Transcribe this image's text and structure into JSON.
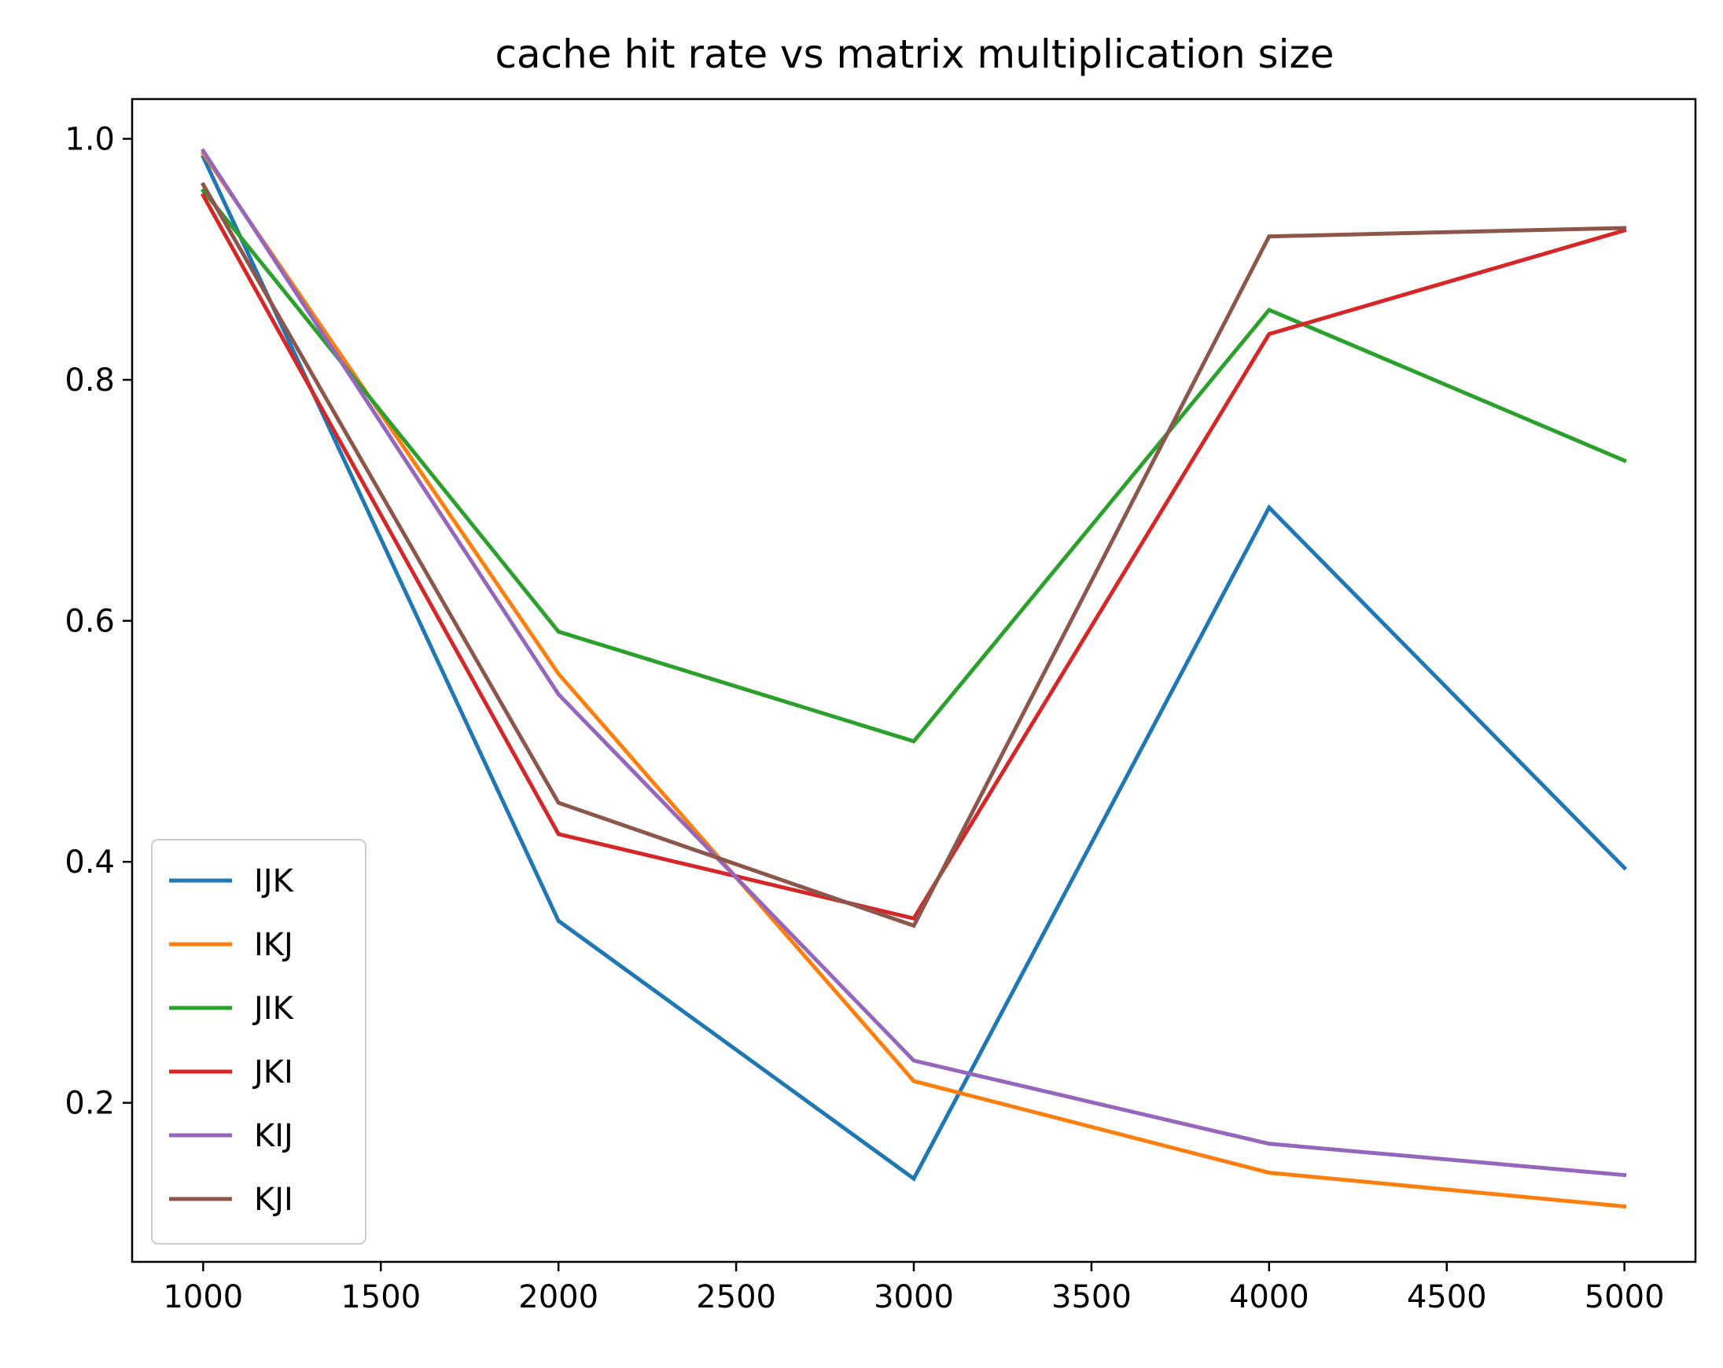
{
  "chart_data": {
    "type": "line",
    "title": "cache hit rate vs matrix multiplication size",
    "xlabel": "",
    "ylabel": "",
    "x": [
      1000,
      2000,
      3000,
      4000,
      5000
    ],
    "xlim": [
      800,
      5200
    ],
    "ylim": [
      0.068,
      1.033
    ],
    "xticks": [
      1000,
      1500,
      2000,
      2500,
      3000,
      3500,
      4000,
      4500,
      5000
    ],
    "xtick_labels": [
      "1000",
      "1500",
      "2000",
      "2500",
      "3000",
      "3500",
      "4000",
      "4500",
      "5000"
    ],
    "yticks": [
      0.2,
      0.4,
      0.6,
      0.8,
      1.0
    ],
    "ytick_labels": [
      "0.2",
      "0.4",
      "0.6",
      "0.8",
      "1.0"
    ],
    "grid": false,
    "legend_position": "lower-left",
    "series": [
      {
        "name": "IJK",
        "color": "#1f77b4",
        "values": [
          0.985,
          0.351,
          0.137,
          0.694,
          0.395
        ]
      },
      {
        "name": "IKJ",
        "color": "#ff7f0e",
        "values": [
          0.988,
          0.556,
          0.218,
          0.142,
          0.114
        ]
      },
      {
        "name": "JIK",
        "color": "#2ca02c",
        "values": [
          0.957,
          0.591,
          0.5,
          0.858,
          0.733
        ]
      },
      {
        "name": "JKI",
        "color": "#d62728",
        "values": [
          0.953,
          0.423,
          0.353,
          0.838,
          0.924
        ]
      },
      {
        "name": "KIJ",
        "color": "#9467bd",
        "values": [
          0.99,
          0.539,
          0.235,
          0.166,
          0.14
        ]
      },
      {
        "name": "KJI",
        "color": "#8c564b",
        "values": [
          0.962,
          0.449,
          0.347,
          0.919,
          0.926
        ]
      }
    ]
  }
}
